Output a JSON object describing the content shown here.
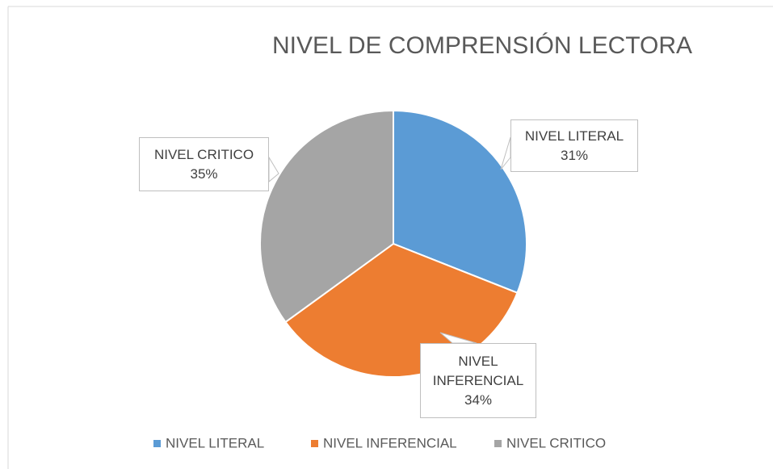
{
  "chart_data": {
    "type": "pie",
    "title": "NIVEL DE COMPRENSIÓN LECTORA",
    "categories": [
      "NIVEL LITERAL",
      "NIVEL INFERENCIAL",
      "NIVEL CRITICO"
    ],
    "values": [
      31,
      34,
      35
    ],
    "value_labels": [
      "31%",
      "34%",
      "35%"
    ],
    "colors": [
      "#5b9bd5",
      "#ed7d31",
      "#a5a5a5"
    ],
    "legend": "bottom"
  }
}
